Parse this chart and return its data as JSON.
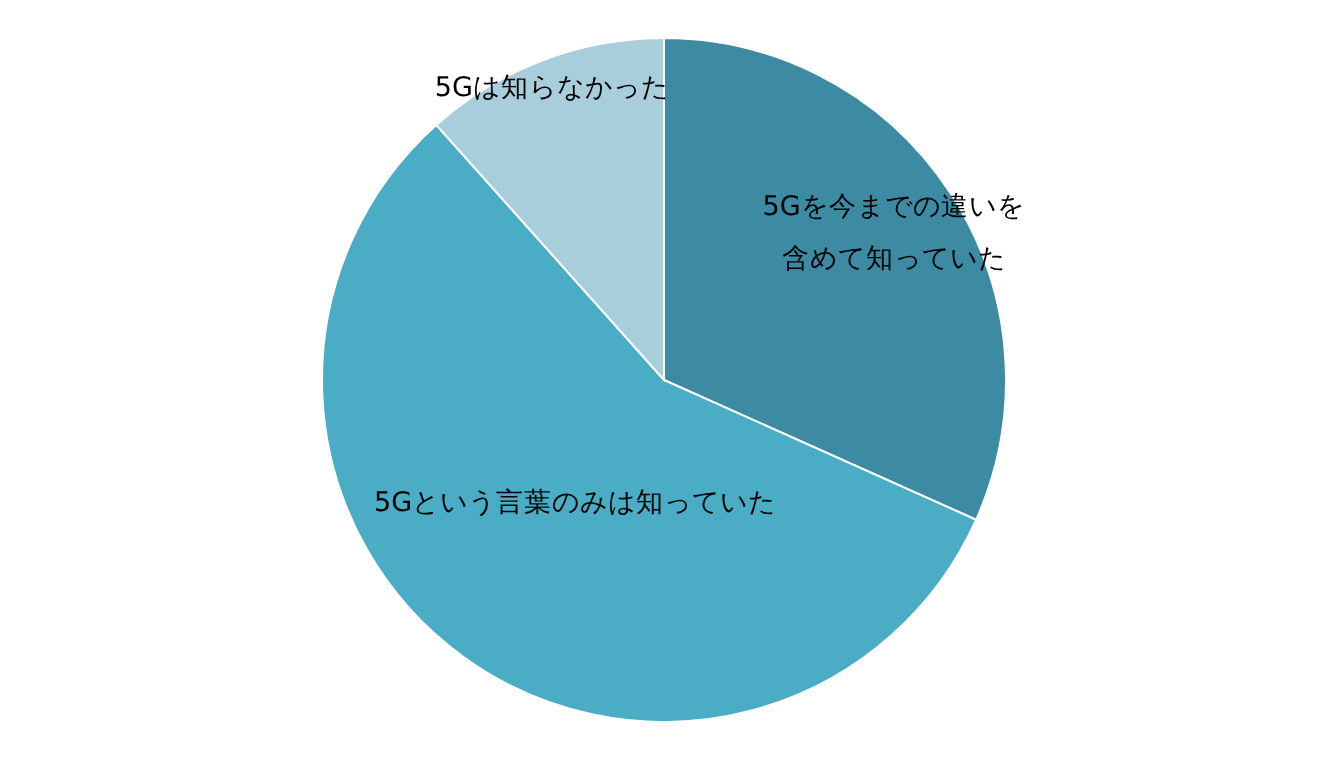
{
  "chart_data": {
    "type": "pie",
    "categories": [
      "5Gを今までの違いを含めて知っていた",
      "5Gという言葉のみは知っていた",
      "5Gは知らなかった"
    ],
    "values": [
      31.7,
      56.7,
      11.6
    ],
    "colors": [
      "#3d8ba3",
      "#4bacc6",
      "#a8cedc"
    ]
  }
}
